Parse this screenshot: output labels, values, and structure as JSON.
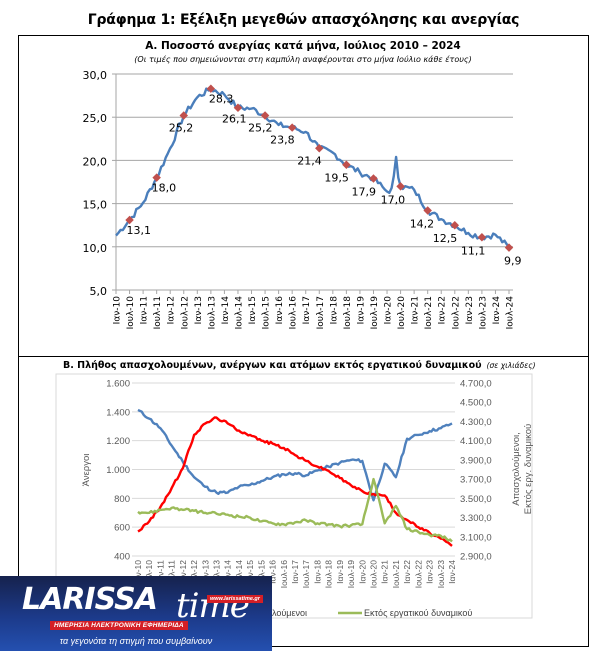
{
  "page_title": "Γράφημα 1: Εξέλιξη μεγεθών απασχόλησης και ανεργίας",
  "colors": {
    "unemployment_line": "#4a7ebb",
    "marker": "#c0504d",
    "employed": "#4f81bd",
    "unemployed": "#ff0000",
    "inactive": "#9bbb59",
    "grid": "#a6a6a6",
    "grid_b": "#d9d9d9"
  },
  "chart_data": [
    {
      "id": "A",
      "type": "line",
      "title": "Α. Ποσοστό ανεργίας κατά μήνα, Ιούλιος 2010 – 2024",
      "subtitle": "(Οι τιμές που σημειώνονται στη καμπύλη αναφέρονται στο μήνα Ιούλιο κάθε έτους)",
      "xlabel": "",
      "ylabel": "",
      "ylim": [
        5,
        30
      ],
      "yticks": [
        "30,0",
        "25,0",
        "20,0",
        "15,0",
        "10,0",
        "5,0"
      ],
      "ytick_values": [
        30,
        25,
        20,
        15,
        10,
        5
      ],
      "grid": true,
      "categories": [
        "Ιαν-10",
        "Ιουλ-10",
        "Ιαν-11",
        "Ιουλ-11",
        "Ιαν-12",
        "Ιουλ-12",
        "Ιαν-13",
        "Ιουλ-13",
        "Ιαν-14",
        "Ιουλ-14",
        "Ιαν-15",
        "Ιουλ-15",
        "Ιαν-16",
        "Ιουλ-16",
        "Ιαν-17",
        "Ιουλ-17",
        "Ιαν-18",
        "Ιουλ-18",
        "Ιαν-19",
        "Ιουλ-19",
        "Ιαν-20",
        "Ιουλ-20",
        "Ιαν-21",
        "Ιουλ-21",
        "Ιαν-22",
        "Ιουλ-22",
        "Ιαν-23",
        "Ιουλ-23",
        "Ιαν-24",
        "Ιουλ-24"
      ],
      "series": [
        {
          "name": "Ποσοστό ανεργίας",
          "values": [
            11.3,
            13.1,
            15.1,
            18.0,
            21.4,
            25.2,
            27.3,
            28.3,
            27.6,
            26.1,
            26.0,
            25.2,
            24.1,
            23.8,
            23.3,
            21.4,
            20.9,
            19.5,
            18.6,
            17.9,
            16.4,
            17.0,
            16.6,
            14.2,
            13.2,
            12.5,
            11.6,
            11.1,
            11.4,
            9.9
          ]
        }
      ],
      "annotations": [
        {
          "category": "Ιουλ-10",
          "value": 13.1,
          "label": "13,1"
        },
        {
          "category": "Ιουλ-11",
          "value": 18.0,
          "label": "18,0"
        },
        {
          "category": "Ιουλ-12",
          "value": 25.2,
          "label": "25,2"
        },
        {
          "category": "Ιουλ-13",
          "value": 28.3,
          "label": "28,3"
        },
        {
          "category": "Ιουλ-14",
          "value": 26.1,
          "label": "26,1"
        },
        {
          "category": "Ιουλ-15",
          "value": 25.2,
          "label": "25,2"
        },
        {
          "category": "Ιουλ-16",
          "value": 23.8,
          "label": "23,8"
        },
        {
          "category": "Ιουλ-17",
          "value": 21.4,
          "label": "21,4"
        },
        {
          "category": "Ιουλ-18",
          "value": 19.5,
          "label": "19,5"
        },
        {
          "category": "Ιουλ-19",
          "value": 17.9,
          "label": "17,9"
        },
        {
          "category": "Ιουλ-20",
          "value": 17.0,
          "label": "17,0"
        },
        {
          "category": "Ιουλ-21",
          "value": 14.2,
          "label": "14,2"
        },
        {
          "category": "Ιουλ-22",
          "value": 12.5,
          "label": "12,5"
        },
        {
          "category": "Ιουλ-23",
          "value": 11.1,
          "label": "11,1"
        },
        {
          "category": "Ιουλ-24",
          "value": 9.9,
          "label": "9,9"
        }
      ]
    },
    {
      "id": "B",
      "type": "line",
      "title": "Β. Πλήθος απασχολουμένων, ανέργων και ατόμων εκτός εργατικού δυναμικού",
      "title_note": "(σε χιλιάδες)",
      "ylabel_left": "Άνεργοι",
      "ylabel_right_line1": "Απασχολούμενοι,",
      "ylabel_right_line2": "Εκτός εργ. δυναμικού",
      "ylim_left": [
        400,
        1600
      ],
      "ylim_right": [
        2900,
        4700
      ],
      "yticks_left": [
        "1.600",
        "1.400",
        "1.200",
        "1.000",
        "800",
        "600",
        "400"
      ],
      "yticks_left_values": [
        1600,
        1400,
        1200,
        1000,
        800,
        600,
        400
      ],
      "yticks_right": [
        "4.700,0",
        "4.500,0",
        "4.300,0",
        "4.100,0",
        "3.900,0",
        "3.700,0",
        "3.500,0",
        "3.300,0",
        "3.100,0",
        "2.900,0"
      ],
      "yticks_right_values": [
        4700,
        4500,
        4300,
        4100,
        3900,
        3700,
        3500,
        3300,
        3100,
        2900
      ],
      "grid": true,
      "categories": [
        "Ιαν-10",
        "Ιουλ-10",
        "Ιαν-11",
        "Ιουλ-11",
        "Ιαν-12",
        "Ιουλ-12",
        "Ιαν-13",
        "Ιουλ-13",
        "Ιαν-14",
        "Ιουλ-14",
        "Ιαν-15",
        "Ιουλ-15",
        "Ιαν-16",
        "Ιουλ-16",
        "Ιαν-17",
        "Ιουλ-17",
        "Ιαν-18",
        "Ιουλ-18",
        "Ιαν-19",
        "Ιουλ-19",
        "Ιαν-20",
        "Ιουλ-20",
        "Ιαν-21",
        "Ιουλ-21",
        "Ιαν-22",
        "Ιουλ-22",
        "Ιαν-23",
        "Ιουλ-23",
        "Ιαν-24"
      ],
      "x_tick_labels_visible": [
        "Ιουλ-16",
        "Ιαν-17",
        "Ιουλ-17",
        "Ιαν-18",
        "Ιουλ-18",
        "Ιαν-19",
        "Ιουλ-19",
        "Ιαν-20",
        "Ιουλ-20",
        "Ιαν-21",
        "Ιουλ-21",
        "Ιαν-22",
        "Ιουλ-22",
        "Ιαν-23",
        "Ιουλ-23",
        "Ιαν-24"
      ],
      "x_tick_suffix_visible": [
        "10",
        "10",
        "11",
        "11",
        "12",
        "12",
        "13",
        "13",
        "14",
        "14",
        "15",
        "15",
        "16"
      ],
      "series": [
        {
          "name": "Απασχολούμενοι",
          "legend_label_visible": "λούμενοι",
          "axis": "right",
          "values": [
            4420,
            4330,
            4230,
            4050,
            3880,
            3720,
            3620,
            3560,
            3560,
            3620,
            3640,
            3680,
            3720,
            3750,
            3760,
            3740,
            3790,
            3830,
            3870,
            3900,
            3890,
            3480,
            3860,
            3720,
            4120,
            4160,
            4200,
            4230,
            4280
          ]
        },
        {
          "name": "Άνεργοι",
          "axis": "left",
          "values": [
            570,
            640,
            740,
            870,
            1010,
            1240,
            1320,
            1360,
            1320,
            1270,
            1240,
            1200,
            1180,
            1150,
            1100,
            1060,
            1020,
            990,
            940,
            890,
            850,
            830,
            820,
            700,
            650,
            600,
            560,
            520,
            470
          ]
        },
        {
          "name": "Εκτός εργατικού δυναμικού",
          "axis": "right",
          "values": [
            3360,
            3350,
            3380,
            3400,
            3380,
            3370,
            3350,
            3340,
            3330,
            3310,
            3300,
            3260,
            3240,
            3230,
            3250,
            3270,
            3240,
            3230,
            3210,
            3220,
            3230,
            3700,
            3240,
            3420,
            3180,
            3150,
            3120,
            3110,
            3050
          ]
        }
      ],
      "legend": [
        "λούμενοι",
        "Εκτός εργατικού δυναμικού"
      ],
      "legend_position": "bottom"
    }
  ],
  "logo": {
    "brand_main": "LARISSA",
    "brand_time": "time",
    "url": "www.larissatime.gr",
    "badge": "ΗΜΕΡΗΣΙΑ ΗΛΕΚΤΡΟΝΙΚΗ ΕΦΗΜΕΡΙΔΑ",
    "tagline": "τα γεγονότα τη στιγμή που συμβαίνουν"
  }
}
